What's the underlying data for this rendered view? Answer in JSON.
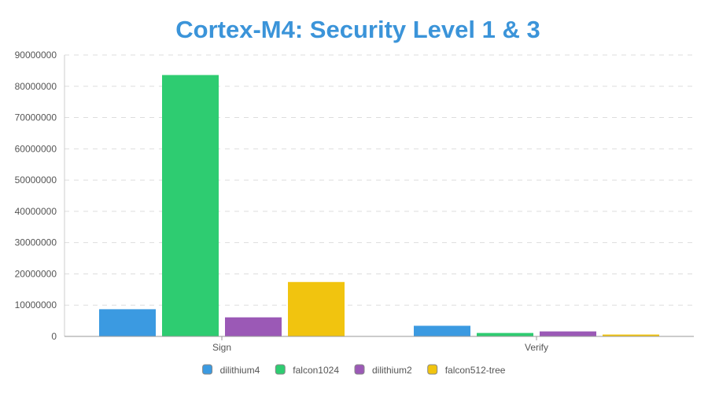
{
  "chart_data": {
    "type": "bar",
    "title": "Cortex-M4: Security Level 1 & 3",
    "xlabel": "",
    "ylabel": "",
    "categories": [
      "Sign",
      "Verify"
    ],
    "ylim": [
      0,
      90000000
    ],
    "yticks": [
      0,
      10000000,
      20000000,
      30000000,
      40000000,
      50000000,
      60000000,
      70000000,
      80000000,
      90000000
    ],
    "grid": true,
    "legend": "bottom",
    "series": [
      {
        "name": "dilithium4",
        "color": "#3b9ae1",
        "values": [
          8700000,
          3400000
        ]
      },
      {
        "name": "falcon1024",
        "color": "#2ecc71",
        "values": [
          83600000,
          1100000
        ]
      },
      {
        "name": "dilithium2",
        "color": "#9b59b6",
        "values": [
          6100000,
          1600000
        ]
      },
      {
        "name": "falcon512-tree",
        "color": "#f1c40f",
        "values": [
          17400000,
          600000
        ]
      }
    ]
  }
}
